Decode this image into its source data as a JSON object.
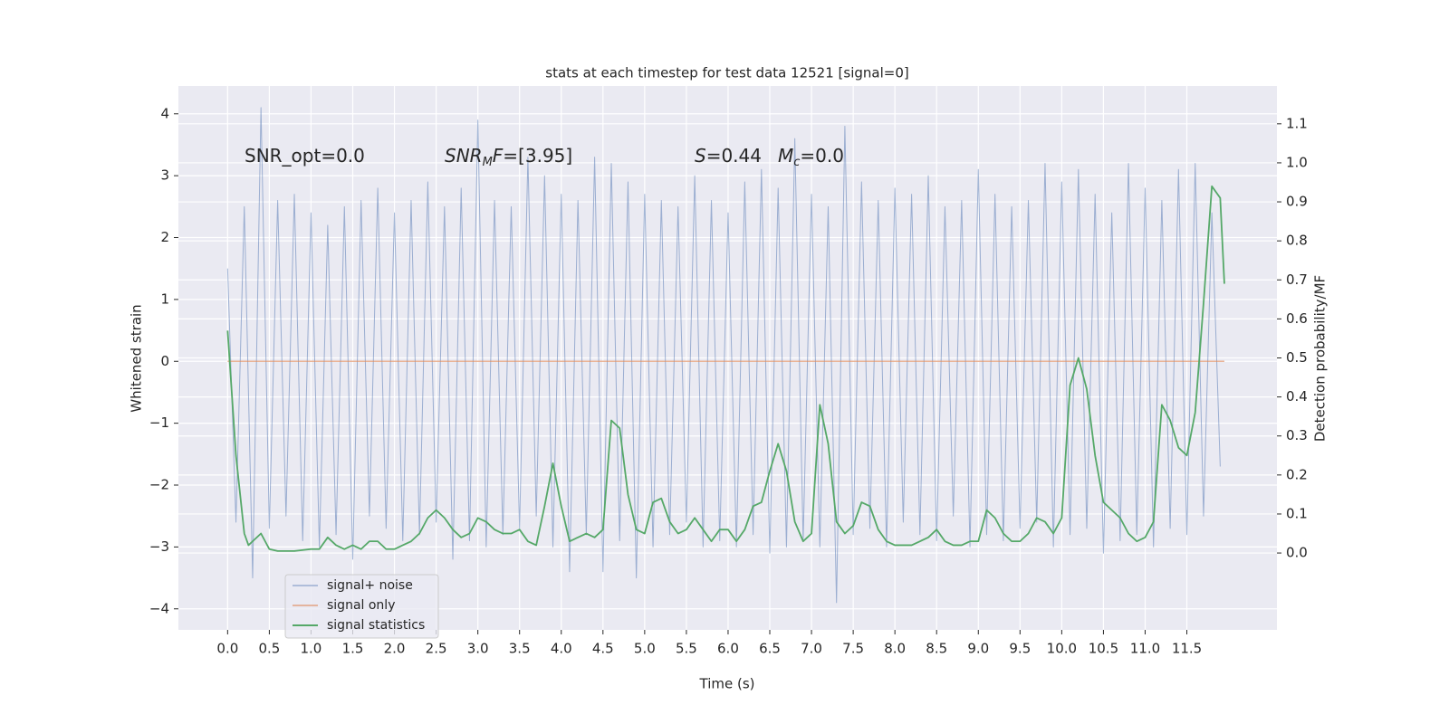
{
  "chart_data": {
    "type": "line",
    "title": "stats at each timestep for test data 12521 [signal=0]",
    "xlabel": "Time (s)",
    "ylabel": "Whitened strain",
    "y2label": "Detection probability/MF",
    "xlim": [
      -0.59,
      12.58
    ],
    "ylim": [
      -4.34,
      4.45
    ],
    "y2lim": [
      -0.197,
      1.197
    ],
    "xticks": [
      {
        "value": 0,
        "label": "0.0"
      },
      0.5,
      {
        "value": 1,
        "label": "1.0"
      },
      1.5,
      {
        "value": 2,
        "label": "2.0"
      },
      2.5,
      {
        "value": 3,
        "label": "3.0"
      },
      3.5,
      {
        "value": 4,
        "label": "4.0"
      },
      4.5,
      {
        "value": 5,
        "label": "5.0"
      },
      5.5,
      {
        "value": 6,
        "label": "6.0"
      },
      6.5,
      {
        "value": 7,
        "label": "7.0"
      },
      7.5,
      {
        "value": 8,
        "label": "8.0"
      },
      8.5,
      {
        "value": 9,
        "label": "9.0"
      },
      9.5,
      {
        "value": 10,
        "label": "10.0"
      },
      10.5,
      {
        "value": 11,
        "label": "11.0"
      },
      11.5
    ],
    "yticks": [
      {
        "value": -4,
        "label": "−4"
      },
      {
        "value": -3,
        "label": "−3"
      },
      {
        "value": -2,
        "label": "−2"
      },
      {
        "value": -1,
        "label": "−1"
      },
      0,
      1,
      2,
      3,
      4
    ],
    "y2ticks": [
      {
        "value": 0,
        "label": "0.0"
      },
      0.1,
      0.2,
      0.3,
      0.4,
      0.5,
      0.6,
      0.7,
      0.8,
      0.9,
      {
        "value": 1,
        "label": "1.0"
      },
      1.1
    ],
    "grid": true,
    "legend": "lower left",
    "annotations": [
      [
        {
          "text": "SNR_opt=0.0"
        }
      ],
      [
        {
          "text": "SNR",
          "italic": true
        },
        {
          "text": "M",
          "italic": true,
          "sub": true
        },
        {
          "text": "F",
          "italic": true
        },
        {
          "text": "=[3.95]"
        }
      ],
      [
        {
          "text": "S",
          "italic": true
        },
        {
          "text": "=0.44"
        }
      ],
      [
        {
          "text": "M",
          "italic": true
        },
        {
          "text": "c",
          "italic": true,
          "sub": true
        },
        {
          "text": "=0.0"
        }
      ]
    ],
    "series": [
      {
        "name": "signal+ noise",
        "color": "#4c72b0",
        "x": [
          0,
          0.1,
          0.2,
          0.3,
          0.4,
          0.5,
          0.6,
          0.7,
          0.8,
          0.9,
          1,
          1.1,
          1.2,
          1.3,
          1.4,
          1.5,
          1.6,
          1.7,
          1.8,
          1.9,
          2,
          2.1,
          2.2,
          2.3,
          2.4,
          2.5,
          2.6,
          2.7,
          2.8,
          2.9,
          3,
          3.1,
          3.2,
          3.3,
          3.4,
          3.5,
          3.6,
          3.7,
          3.8,
          3.9,
          4,
          4.1,
          4.2,
          4.3,
          4.4,
          4.5,
          4.6,
          4.7,
          4.8,
          4.9,
          5,
          5.1,
          5.2,
          5.3,
          5.4,
          5.5,
          5.6,
          5.7,
          5.8,
          5.9,
          6,
          6.1,
          6.2,
          6.3,
          6.4,
          6.5,
          6.6,
          6.7,
          6.8,
          6.9,
          7,
          7.1,
          7.2,
          7.3,
          7.4,
          7.5,
          7.6,
          7.7,
          7.8,
          7.9,
          8,
          8.1,
          8.2,
          8.3,
          8.4,
          8.5,
          8.6,
          8.7,
          8.8,
          8.9,
          9,
          9.1,
          9.2,
          9.3,
          9.4,
          9.5,
          9.6,
          9.7,
          9.8,
          9.9,
          10,
          10.1,
          10.2,
          10.3,
          10.4,
          10.5,
          10.6,
          10.7,
          10.8,
          10.9,
          11,
          11.1,
          11.2,
          11.3,
          11.4,
          11.5,
          11.6,
          11.7,
          11.8,
          11.9
        ],
        "values": [
          1.5,
          -2.6,
          2.5,
          -3.5,
          4.1,
          -2.7,
          2.6,
          -2.5,
          2.7,
          -2.9,
          2.4,
          -3.0,
          2.2,
          -2.8,
          2.5,
          -3.2,
          2.6,
          -2.5,
          2.8,
          -2.7,
          2.4,
          -2.9,
          2.6,
          -2.8,
          2.9,
          -2.6,
          2.5,
          -3.2,
          2.8,
          -2.9,
          3.9,
          -3.0,
          2.6,
          -2.8,
          2.5,
          -2.7,
          3.3,
          -2.5,
          3.0,
          -3.0,
          2.7,
          -3.4,
          2.6,
          -2.8,
          3.3,
          -3.4,
          3.2,
          -2.9,
          2.9,
          -3.5,
          2.7,
          -3.0,
          2.6,
          -2.8,
          2.5,
          -2.6,
          3.0,
          -3.0,
          2.6,
          -2.9,
          2.4,
          -3.0,
          2.9,
          -2.8,
          3.1,
          -3.1,
          2.8,
          -3.0,
          3.6,
          -2.9,
          2.7,
          -3.0,
          2.5,
          -3.9,
          3.8,
          -2.8,
          2.9,
          -2.7,
          2.6,
          -3.0,
          2.8,
          -2.6,
          2.7,
          -2.8,
          3.0,
          -2.9,
          2.5,
          -2.5,
          2.6,
          -3.0,
          3.1,
          -2.8,
          2.7,
          -2.9,
          2.5,
          -2.7,
          2.6,
          -2.6,
          3.2,
          -3.0,
          2.9,
          -2.8,
          3.1,
          -2.7,
          2.7,
          -3.1,
          2.4,
          -2.9,
          3.2,
          -2.8,
          2.8,
          -3.0,
          2.6,
          -2.7,
          3.1,
          -2.8,
          3.2,
          -2.5,
          2.4,
          -1.7
        ]
      },
      {
        "name": "signal only",
        "color": "#dd8452",
        "x": [
          0,
          11.95
        ],
        "values": [
          0,
          0
        ]
      },
      {
        "name": "signal statistics",
        "color": "#55a868",
        "axis": "y2",
        "x": [
          0,
          0.1,
          0.2,
          0.25,
          0.3,
          0.4,
          0.5,
          0.6,
          0.8,
          1,
          1.1,
          1.2,
          1.3,
          1.4,
          1.5,
          1.6,
          1.7,
          1.8,
          1.9,
          2,
          2.1,
          2.2,
          2.3,
          2.4,
          2.5,
          2.6,
          2.7,
          2.8,
          2.9,
          3,
          3.1,
          3.2,
          3.3,
          3.4,
          3.5,
          3.6,
          3.7,
          3.8,
          3.9,
          4,
          4.1,
          4.2,
          4.3,
          4.4,
          4.5,
          4.6,
          4.7,
          4.8,
          4.9,
          5,
          5.1,
          5.2,
          5.3,
          5.4,
          5.5,
          5.6,
          5.7,
          5.8,
          5.9,
          6,
          6.1,
          6.2,
          6.3,
          6.4,
          6.5,
          6.6,
          6.7,
          6.8,
          6.9,
          7,
          7.1,
          7.2,
          7.3,
          7.4,
          7.5,
          7.6,
          7.7,
          7.8,
          7.9,
          8,
          8.1,
          8.2,
          8.3,
          8.4,
          8.5,
          8.6,
          8.7,
          8.8,
          8.9,
          9,
          9.1,
          9.2,
          9.3,
          9.4,
          9.5,
          9.6,
          9.7,
          9.8,
          9.9,
          10,
          10.1,
          10.2,
          10.3,
          10.4,
          10.5,
          10.6,
          10.7,
          10.8,
          10.9,
          11,
          11.1,
          11.2,
          11.3,
          11.4,
          11.5,
          11.6,
          11.7,
          11.8,
          11.9,
          11.95
        ],
        "values": [
          0.57,
          0.25,
          0.05,
          0.02,
          0.03,
          0.05,
          0.01,
          0.005,
          0.005,
          0.01,
          0.01,
          0.04,
          0.02,
          0.01,
          0.02,
          0.01,
          0.03,
          0.03,
          0.01,
          0.01,
          0.02,
          0.03,
          0.05,
          0.09,
          0.11,
          0.09,
          0.06,
          0.04,
          0.05,
          0.09,
          0.08,
          0.06,
          0.05,
          0.05,
          0.06,
          0.03,
          0.02,
          0.12,
          0.23,
          0.12,
          0.03,
          0.04,
          0.05,
          0.04,
          0.06,
          0.34,
          0.32,
          0.15,
          0.06,
          0.05,
          0.13,
          0.14,
          0.08,
          0.05,
          0.06,
          0.09,
          0.06,
          0.03,
          0.06,
          0.06,
          0.03,
          0.06,
          0.12,
          0.13,
          0.21,
          0.28,
          0.21,
          0.08,
          0.03,
          0.05,
          0.38,
          0.28,
          0.08,
          0.05,
          0.07,
          0.13,
          0.12,
          0.06,
          0.03,
          0.02,
          0.02,
          0.02,
          0.03,
          0.04,
          0.06,
          0.03,
          0.02,
          0.02,
          0.03,
          0.03,
          0.11,
          0.09,
          0.05,
          0.03,
          0.03,
          0.05,
          0.09,
          0.08,
          0.05,
          0.09,
          0.43,
          0.5,
          0.42,
          0.25,
          0.13,
          0.11,
          0.09,
          0.05,
          0.03,
          0.04,
          0.08,
          0.38,
          0.34,
          0.27,
          0.25,
          0.36,
          0.64,
          0.94,
          0.91,
          0.69
        ]
      }
    ]
  }
}
